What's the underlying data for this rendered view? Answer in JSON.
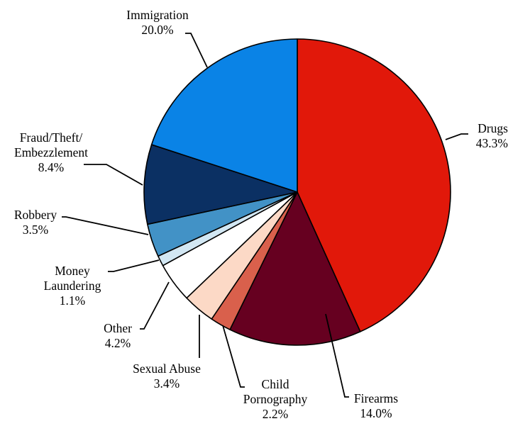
{
  "chart_data": {
    "type": "pie",
    "title": "",
    "start_angle_deg": 0,
    "direction": "clockwise",
    "slices": [
      {
        "label": "Drugs",
        "value": 43.3,
        "value_label": "43.3%",
        "color": "#e1180a"
      },
      {
        "label": "Firearms",
        "value": 14.0,
        "value_label": "14.0%",
        "color": "#660020"
      },
      {
        "label": "Child Pornography",
        "value": 2.2,
        "value_label": "2.2%",
        "color": "#d9604c"
      },
      {
        "label": "Sexual Abuse",
        "value": 3.4,
        "value_label": "3.4%",
        "color": "#fcd9c6"
      },
      {
        "label": "Other",
        "value": 4.2,
        "value_label": "4.2%",
        "color": "#ffffff"
      },
      {
        "label": "Money Laundering",
        "value": 1.1,
        "value_label": "1.1%",
        "color": "#d2e7f3"
      },
      {
        "label": "Robbery",
        "value": 3.5,
        "value_label": "3.5%",
        "color": "#4292c6"
      },
      {
        "label": "Fraud/Theft/ Embezzlement",
        "value": 8.4,
        "value_label": "8.4%",
        "color": "#0b3063"
      },
      {
        "label": "Immigration",
        "value": 20.0,
        "value_label": "20.0%",
        "color": "#0a83e6"
      }
    ]
  }
}
